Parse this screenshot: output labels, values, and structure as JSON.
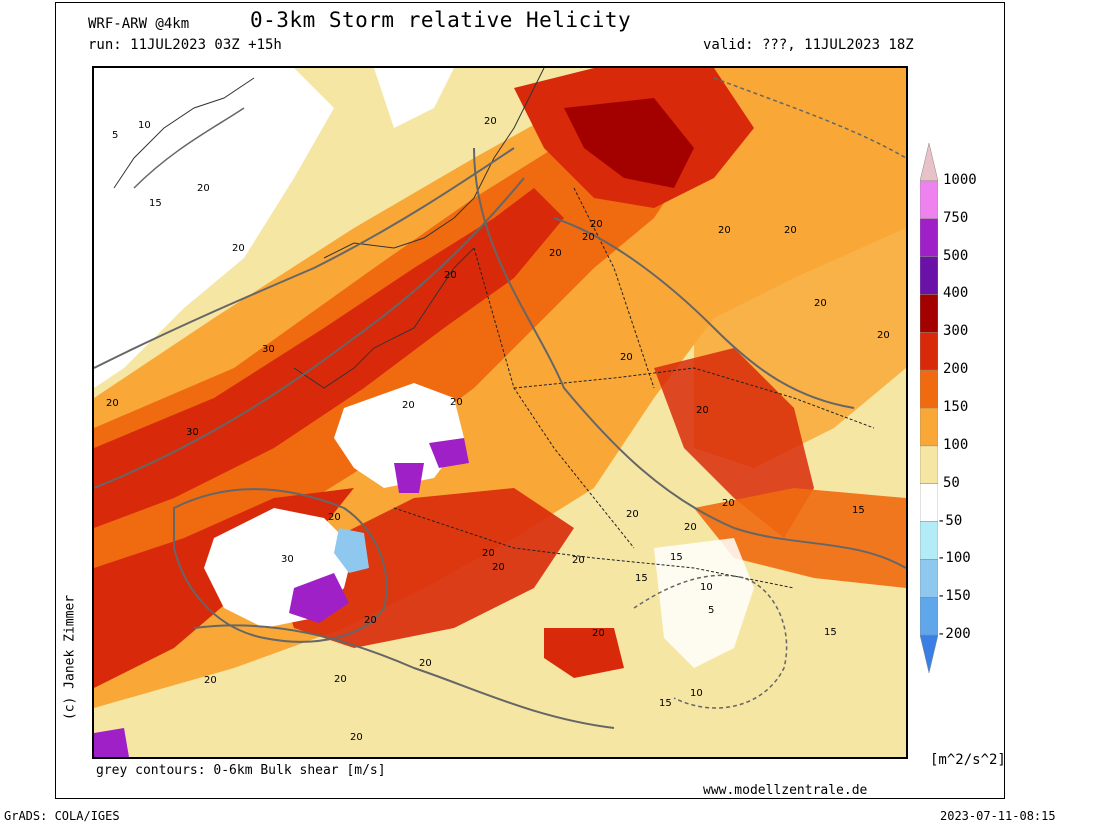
{
  "header": {
    "model": "WRF-ARW @4km",
    "title": "0-3km Storm relative Helicity",
    "run": "run: 11JUL2023 03Z +15h",
    "valid": "valid: ???, 11JUL2023 18Z"
  },
  "map": {
    "contour_labels": [
      "5",
      "10",
      "15",
      "20",
      "20",
      "20",
      "20",
      "20",
      "20",
      "20",
      "20",
      "20",
      "20",
      "20",
      "20",
      "20",
      "20",
      "20",
      "20",
      "20",
      "20",
      "20",
      "20",
      "20",
      "20",
      "20",
      "20",
      "20",
      "20",
      "20",
      "20",
      "20",
      "30",
      "30",
      "30",
      "15",
      "15",
      "15",
      "15",
      "15",
      "10",
      "10",
      "5"
    ]
  },
  "legend": {
    "levels": [
      "1000",
      "750",
      "500",
      "400",
      "300",
      "200",
      "150",
      "100",
      "50",
      "-50",
      "-100",
      "-150",
      "-200"
    ],
    "colors": [
      "#e8c2c8",
      "#ee82ee",
      "#a020c8",
      "#6a12a8",
      "#a30000",
      "#d82a0a",
      "#f06a10",
      "#f9a838",
      "#f6e6a4",
      "#ffffff",
      "#b3ecf6",
      "#8ec8ee",
      "#5fa6ea",
      "#3a80e4"
    ],
    "units": "[m^2/s^2]"
  },
  "footer": {
    "credit": "(c) Janek Zimmer",
    "caption": "grey contours: 0-6km Bulk shear [m/s]",
    "website": "www.modellzentrale.de",
    "software": "GrADS: COLA/IGES",
    "timestamp": "2023-07-11-08:15"
  }
}
